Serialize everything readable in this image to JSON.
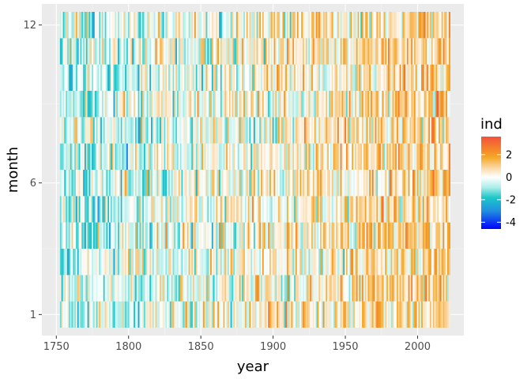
{
  "chart_data": {
    "type": "heatmap",
    "title": "",
    "xlabel": "year",
    "ylabel": "month",
    "x_range": [
      1753,
      2022
    ],
    "xlim": [
      1740,
      2032
    ],
    "ylim": [
      0.2,
      12.8
    ],
    "x_ticks": [
      1750,
      1800,
      1850,
      1900,
      1950,
      2000
    ],
    "x_tick_labels": [
      "1750",
      "1800",
      "1850",
      "1900",
      "1950",
      "2000"
    ],
    "y_ticks": [
      1,
      6,
      12
    ],
    "y_tick_labels": [
      "1",
      "6",
      "12"
    ],
    "months": [
      1,
      2,
      3,
      4,
      5,
      6,
      7,
      8,
      9,
      10,
      11,
      12
    ],
    "value_range": [
      -4.6,
      3.6
    ],
    "grid": true,
    "legend": {
      "title": "ind",
      "placement": "right",
      "ticks": [
        2,
        0,
        -2,
        -4
      ],
      "tick_labels": [
        "2",
        "0",
        "-2",
        "-4"
      ],
      "colors": [
        {
          "value": -4.6,
          "color": "#0000ff"
        },
        {
          "value": -3.0,
          "color": "#1f8fe0"
        },
        {
          "value": -1.8,
          "color": "#1ec8c8"
        },
        {
          "value": -0.9,
          "color": "#aeeeea"
        },
        {
          "value": 0.0,
          "color": "#ffffff"
        },
        {
          "value": 0.8,
          "color": "#fbd9a8"
        },
        {
          "value": 1.8,
          "color": "#f5a623"
        },
        {
          "value": 3.6,
          "color": "#f4503a"
        }
      ]
    },
    "value_description": "monthly index values, one cell per year (1753-2022) and month (1-12)"
  }
}
